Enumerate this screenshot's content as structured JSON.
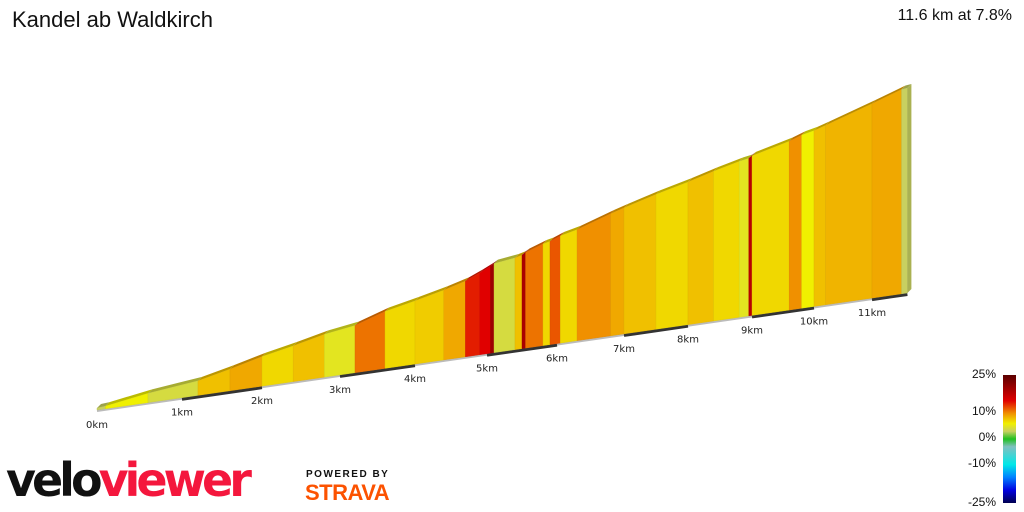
{
  "header": {
    "title": "Kandel ab Waldkirch",
    "summary": "11.6 km at 7.8%"
  },
  "chart_data": {
    "type": "area",
    "title": "Kandel ab Waldkirch",
    "total_distance_km": 11.6,
    "average_gradient_pct": 7.8,
    "x_ticks": [
      "0km",
      "1km",
      "2km",
      "3km",
      "4km",
      "5km",
      "6km",
      "7km",
      "8km",
      "9km",
      "10km",
      "11km"
    ],
    "segments": [
      {
        "from": 0.0,
        "to": 0.1,
        "gradient": 3
      },
      {
        "from": 0.1,
        "to": 0.6,
        "gradient": 6
      },
      {
        "from": 0.6,
        "to": 1.2,
        "gradient": 4
      },
      {
        "from": 1.2,
        "to": 1.6,
        "gradient": 8
      },
      {
        "from": 1.6,
        "to": 2.0,
        "gradient": 9
      },
      {
        "from": 2.0,
        "to": 2.4,
        "gradient": 7
      },
      {
        "from": 2.4,
        "to": 2.8,
        "gradient": 8
      },
      {
        "from": 2.8,
        "to": 3.2,
        "gradient": 5
      },
      {
        "from": 3.2,
        "to": 3.6,
        "gradient": 11
      },
      {
        "from": 3.6,
        "to": 4.0,
        "gradient": 7
      },
      {
        "from": 4.0,
        "to": 4.4,
        "gradient": 7.5
      },
      {
        "from": 4.4,
        "to": 4.7,
        "gradient": 9
      },
      {
        "from": 4.7,
        "to": 4.9,
        "gradient": 14
      },
      {
        "from": 4.9,
        "to": 5.05,
        "gradient": 15
      },
      {
        "from": 5.05,
        "to": 5.1,
        "gradient": 20
      },
      {
        "from": 5.1,
        "to": 5.4,
        "gradient": 4
      },
      {
        "from": 5.4,
        "to": 5.5,
        "gradient": 8
      },
      {
        "from": 5.5,
        "to": 5.55,
        "gradient": 19
      },
      {
        "from": 5.55,
        "to": 5.8,
        "gradient": 11
      },
      {
        "from": 5.8,
        "to": 5.9,
        "gradient": 7
      },
      {
        "from": 5.9,
        "to": 6.05,
        "gradient": 12
      },
      {
        "from": 6.05,
        "to": 6.3,
        "gradient": 7
      },
      {
        "from": 6.3,
        "to": 6.8,
        "gradient": 10
      },
      {
        "from": 6.8,
        "to": 7.0,
        "gradient": 9
      },
      {
        "from": 7.0,
        "to": 7.5,
        "gradient": 8
      },
      {
        "from": 7.5,
        "to": 8.0,
        "gradient": 7
      },
      {
        "from": 8.0,
        "to": 8.4,
        "gradient": 8
      },
      {
        "from": 8.4,
        "to": 8.8,
        "gradient": 7
      },
      {
        "from": 8.8,
        "to": 8.95,
        "gradient": 5
      },
      {
        "from": 8.95,
        "to": 9.0,
        "gradient": 18
      },
      {
        "from": 9.0,
        "to": 9.6,
        "gradient": 7
      },
      {
        "from": 9.6,
        "to": 9.8,
        "gradient": 10
      },
      {
        "from": 9.8,
        "to": 10.0,
        "gradient": 6
      },
      {
        "from": 10.0,
        "to": 10.2,
        "gradient": 8
      },
      {
        "from": 10.2,
        "to": 11.0,
        "gradient": 8.5
      },
      {
        "from": 11.0,
        "to": 11.5,
        "gradient": 9
      },
      {
        "from": 11.5,
        "to": 11.6,
        "gradient": 3
      }
    ],
    "color_scale": {
      "labels": [
        "25%",
        "10%",
        "0%",
        "-10%",
        "-25%"
      ],
      "stops": [
        {
          "value": 25,
          "color": "#5a0000"
        },
        {
          "value": 15,
          "color": "#e00000"
        },
        {
          "value": 10,
          "color": "#f09000"
        },
        {
          "value": 6,
          "color": "#f0f000"
        },
        {
          "value": 3,
          "color": "#c8d060"
        },
        {
          "value": 0,
          "color": "#20c020"
        },
        {
          "value": -3,
          "color": "#80c0c0"
        },
        {
          "value": -10,
          "color": "#00e8e8"
        },
        {
          "value": -15,
          "color": "#0080ff"
        },
        {
          "value": -20,
          "color": "#0000e0"
        },
        {
          "value": -25,
          "color": "#000050"
        }
      ]
    }
  },
  "branding": {
    "logo_velo": "velo",
    "logo_viewer": "viewer",
    "powered_by": "POWERED BY",
    "strava": "STRAVA"
  }
}
